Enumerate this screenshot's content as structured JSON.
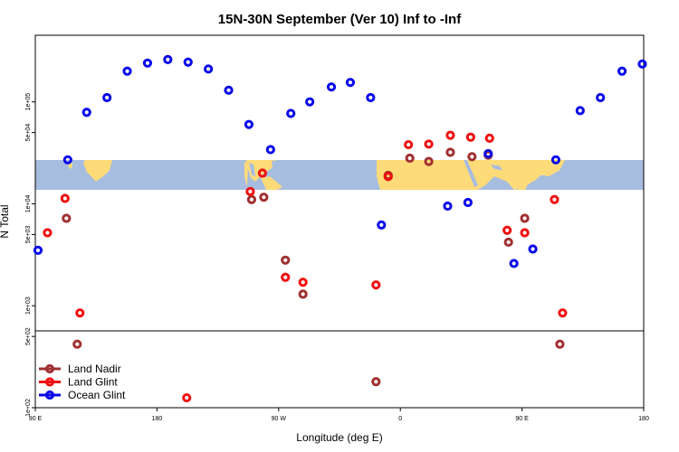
{
  "chart_data": {
    "type": "scatter",
    "title": "15N-30N September (Ver 10)   Inf to -Inf",
    "xlabel": "Longitude (deg E)",
    "ylabel": "N Total",
    "x_tick_labels": [
      "90 E",
      "180",
      "90 W",
      "0",
      "90 E",
      "180"
    ],
    "x_ticks": [
      90,
      180,
      270,
      360,
      450,
      540
    ],
    "xlim": [
      90,
      540
    ],
    "y_scale": "log",
    "ylim": [
      100,
      450000
    ],
    "y_tick_labels": [
      "1e+02",
      "5e+02",
      "1e+03",
      "5e+03",
      "1e+04",
      "5e+04",
      "1e+05"
    ],
    "y_ticks": [
      100,
      500,
      1000,
      5000,
      10000,
      50000,
      100000
    ],
    "legend_position": "bottom-left",
    "map_strip": {
      "lat_range": "15N-30N",
      "ocean_color": "#a7bddf",
      "land_color": "#fedb79"
    },
    "series": [
      {
        "name": "Land Nadir",
        "color": "#a03030",
        "points": [
          {
            "x": 113,
            "y": 7200
          },
          {
            "x": 121,
            "y": 420
          },
          {
            "x": 250,
            "y": 11000
          },
          {
            "x": 259,
            "y": 11600
          },
          {
            "x": 275,
            "y": 2800
          },
          {
            "x": 288,
            "y": 1300
          },
          {
            "x": 342,
            "y": 180
          },
          {
            "x": 351,
            "y": 19000
          },
          {
            "x": 367,
            "y": 28000
          },
          {
            "x": 381,
            "y": 26000
          },
          {
            "x": 397,
            "y": 32000
          },
          {
            "x": 413,
            "y": 29000
          },
          {
            "x": 425,
            "y": 30000
          },
          {
            "x": 440,
            "y": 4200
          },
          {
            "x": 452,
            "y": 7200
          },
          {
            "x": 478,
            "y": 420
          }
        ]
      },
      {
        "name": "Land Glint",
        "color": "#ee1111",
        "points": [
          {
            "x": 99,
            "y": 5200
          },
          {
            "x": 112,
            "y": 11300
          },
          {
            "x": 123,
            "y": 850
          },
          {
            "x": 202,
            "y": 125
          },
          {
            "x": 249,
            "y": 13200
          },
          {
            "x": 258,
            "y": 20000
          },
          {
            "x": 275,
            "y": 1900
          },
          {
            "x": 288,
            "y": 1700
          },
          {
            "x": 342,
            "y": 1600
          },
          {
            "x": 351,
            "y": 18500
          },
          {
            "x": 366,
            "y": 38000
          },
          {
            "x": 381,
            "y": 38500
          },
          {
            "x": 397,
            "y": 47000
          },
          {
            "x": 412,
            "y": 45000
          },
          {
            "x": 426,
            "y": 44000
          },
          {
            "x": 439,
            "y": 5500
          },
          {
            "x": 452,
            "y": 5200
          },
          {
            "x": 474,
            "y": 11000
          },
          {
            "x": 480,
            "y": 850
          }
        ]
      },
      {
        "name": "Ocean Glint",
        "color": "#0a0ae8",
        "points": [
          {
            "x": 92,
            "y": 3500
          },
          {
            "x": 114,
            "y": 27000
          },
          {
            "x": 128,
            "y": 79000
          },
          {
            "x": 143,
            "y": 110000
          },
          {
            "x": 158,
            "y": 200000
          },
          {
            "x": 173,
            "y": 240000
          },
          {
            "x": 188,
            "y": 260000
          },
          {
            "x": 203,
            "y": 245000
          },
          {
            "x": 218,
            "y": 210000
          },
          {
            "x": 233,
            "y": 130000
          },
          {
            "x": 248,
            "y": 60000
          },
          {
            "x": 264,
            "y": 34000
          },
          {
            "x": 279,
            "y": 77000
          },
          {
            "x": 293,
            "y": 100000
          },
          {
            "x": 309,
            "y": 140000
          },
          {
            "x": 323,
            "y": 155000
          },
          {
            "x": 338,
            "y": 110000
          },
          {
            "x": 346,
            "y": 6200
          },
          {
            "x": 395,
            "y": 9500
          },
          {
            "x": 410,
            "y": 10300
          },
          {
            "x": 425,
            "y": 31000
          },
          {
            "x": 444,
            "y": 2600
          },
          {
            "x": 458,
            "y": 3600
          },
          {
            "x": 475,
            "y": 27000
          },
          {
            "x": 493,
            "y": 82000
          },
          {
            "x": 508,
            "y": 110000
          },
          {
            "x": 524,
            "y": 200000
          },
          {
            "x": 539,
            "y": 235000
          }
        ]
      }
    ]
  }
}
